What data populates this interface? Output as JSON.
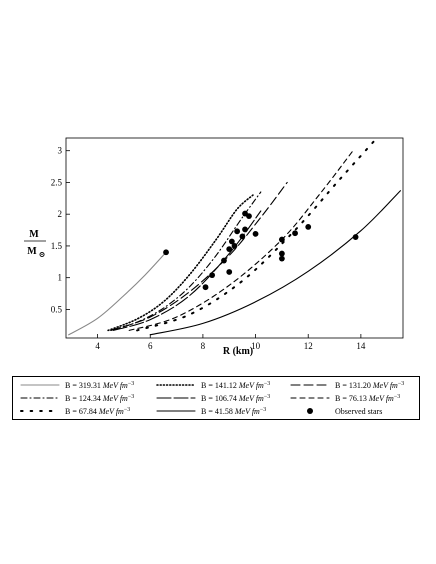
{
  "chart_data": {
    "type": "line",
    "xlabel": "R (km)",
    "ylabel": "M",
    "ylabel_denominator": "M",
    "ylabel_sub": "⊙",
    "xlim": [
      2.8,
      15.6
    ],
    "ylim": [
      0.05,
      3.2
    ],
    "x_ticks": [
      4,
      6,
      8,
      10,
      12,
      14
    ],
    "y_ticks": [
      0.5,
      1,
      1.5,
      2,
      2.5,
      3
    ],
    "x_tick_labels": [
      "4",
      "6",
      "8",
      "10",
      "12",
      "14"
    ],
    "y_tick_labels": [
      "0.5",
      "1",
      "1.5",
      "2",
      "2.5",
      "3"
    ],
    "grid": false,
    "legend_position": "bottom",
    "unit_text": "MeV fm",
    "unit_exp": "−3",
    "series": [
      {
        "name": "B = 319.31",
        "color": "#888888",
        "style": "solid",
        "x": [
          2.9,
          4.0,
          5.0,
          5.8,
          6.6
        ],
        "y": [
          0.1,
          0.36,
          0.72,
          1.04,
          1.4
        ]
      },
      {
        "name": "B = 141.12",
        "color": "#000000",
        "style": "dot",
        "x": [
          4.4,
          5.5,
          6.5,
          7.5,
          8.5,
          9.3,
          9.9
        ],
        "y": [
          0.17,
          0.35,
          0.62,
          1.05,
          1.6,
          2.08,
          2.3
        ]
      },
      {
        "name": "B = 131.20",
        "color": "#000000",
        "style": "longdash",
        "x": [
          4.5,
          6.0,
          7.5,
          9.0,
          10.2,
          11.2
        ],
        "y": [
          0.17,
          0.38,
          0.78,
          1.35,
          1.95,
          2.5
        ]
      },
      {
        "name": "B = 124.34",
        "color": "#000000",
        "style": "dashdot",
        "x": [
          4.5,
          5.5,
          6.5,
          7.5,
          8.5,
          9.5,
          10.2
        ],
        "y": [
          0.17,
          0.3,
          0.52,
          0.86,
          1.35,
          1.95,
          2.35
        ]
      },
      {
        "name": "B = 106.74",
        "color": "#000000",
        "style": "longdash2",
        "x": [
          4.6,
          6.0,
          7.5,
          9.0,
          10.2
        ],
        "y": [
          0.17,
          0.34,
          0.72,
          1.38,
          2.05
        ]
      },
      {
        "name": "B = 76.13",
        "color": "#000000",
        "style": "dash",
        "x": [
          5.2,
          7.0,
          9.0,
          11.0,
          12.5,
          13.7
        ],
        "y": [
          0.17,
          0.38,
          0.88,
          1.6,
          2.35,
          3.0
        ]
      },
      {
        "name": "B = 67.84",
        "color": "#000000",
        "style": "sparse",
        "x": [
          5.5,
          7.5,
          9.5,
          11.5,
          13.2,
          14.5
        ],
        "y": [
          0.17,
          0.42,
          0.95,
          1.75,
          2.55,
          3.15
        ]
      },
      {
        "name": "B = 41.58",
        "color": "#000000",
        "style": "solid",
        "x": [
          6.0,
          8.0,
          10.0,
          12.0,
          14.0,
          15.5
        ],
        "y": [
          0.1,
          0.28,
          0.62,
          1.1,
          1.74,
          2.37
        ]
      }
    ],
    "observed": {
      "name": "Observed stars",
      "points": [
        [
          6.6,
          1.4
        ],
        [
          8.1,
          0.85
        ],
        [
          8.35,
          1.04
        ],
        [
          8.8,
          1.27
        ],
        [
          9.0,
          1.09
        ],
        [
          9.0,
          1.45
        ],
        [
          9.1,
          1.57
        ],
        [
          9.2,
          1.5
        ],
        [
          9.3,
          1.73
        ],
        [
          9.5,
          1.65
        ],
        [
          9.6,
          1.76
        ],
        [
          9.6,
          2.01
        ],
        [
          9.75,
          1.97
        ],
        [
          10.0,
          1.69
        ],
        [
          11.0,
          1.3
        ],
        [
          11.0,
          1.38
        ],
        [
          11.0,
          1.6
        ],
        [
          11.5,
          1.7
        ],
        [
          12.0,
          1.8
        ],
        [
          13.8,
          1.64
        ]
      ]
    }
  }
}
